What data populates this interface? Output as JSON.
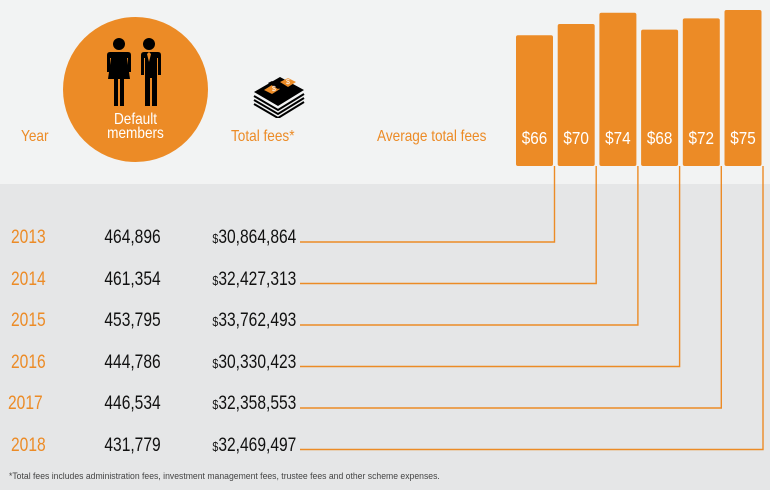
{
  "headers": {
    "year": "Year",
    "members": [
      "Default",
      "members"
    ],
    "total_fees": "Total fees*",
    "average_total_fees": "Average total fees"
  },
  "icons": {
    "members": "people-icon",
    "fees": "money-stack-icon"
  },
  "colors": {
    "accent": "#ec8b26",
    "top_background": "#f2f3f3",
    "table_background": "#e5e6e7",
    "text": "#111111"
  },
  "rows": [
    {
      "year": "2013",
      "members": "464,896",
      "currency": "$",
      "fees": "30,864,864",
      "average": "$66"
    },
    {
      "year": "2014",
      "members": "461,354",
      "currency": "$",
      "fees": "32,427,313",
      "average": "$70"
    },
    {
      "year": "2015",
      "members": "453,795",
      "currency": "$",
      "fees": "33,762,493",
      "average": "$74"
    },
    {
      "year": "2016",
      "members": "444,786",
      "currency": "$",
      "fees": "30,330,423",
      "average": "$68"
    },
    {
      "year": "2017",
      "members": "446,534",
      "currency": "$",
      "fees": "32,358,553",
      "average": "$72"
    },
    {
      "year": "2018",
      "members": "431,779",
      "currency": "$",
      "fees": "32,469,497",
      "average": "$75"
    }
  ],
  "footnote": "*Total fees includes administration fees, investment management fees, trustee fees and other scheme expenses.",
  "chart_data": {
    "type": "bar",
    "title": "Average total fees",
    "categories": [
      "2013",
      "2014",
      "2015",
      "2016",
      "2017",
      "2018"
    ],
    "values": [
      66,
      70,
      74,
      68,
      72,
      75
    ],
    "value_labels": [
      "$66",
      "$70",
      "$74",
      "$68",
      "$72",
      "$75"
    ],
    "xlabel": "",
    "ylabel": "",
    "grid": false,
    "legend": "none",
    "table": {
      "columns": [
        "Year",
        "Default members",
        "Total fees*",
        "Average total fees"
      ],
      "default_members": [
        464896,
        461354,
        453795,
        444786,
        446534,
        431779
      ],
      "total_fees": [
        30864864,
        32427313,
        33762493,
        30330423,
        32358553,
        32469497
      ]
    }
  }
}
